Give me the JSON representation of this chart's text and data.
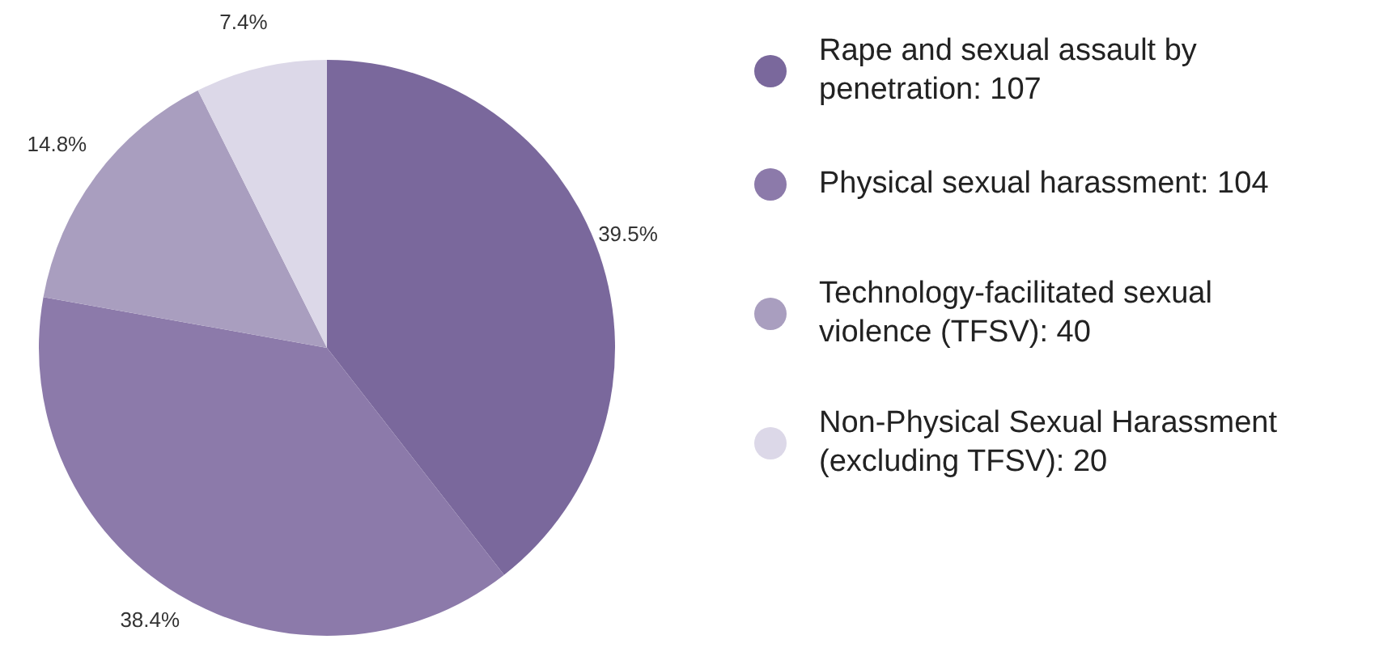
{
  "chart_data": {
    "type": "pie",
    "categories": [
      "Rape and sexual assault by penetration: 107",
      "Physical sexual harassment: 104",
      "Technology-facilitated sexual violence (TFSV): 40",
      "Non-Physical Sexual Harassment (excluding TFSV): 20"
    ],
    "values": [
      39.5,
      38.4,
      14.8,
      7.4
    ],
    "value_labels": [
      "39.5%",
      "38.4%",
      "14.8%",
      "7.4%"
    ],
    "colors": [
      "#7a689c",
      "#8c7aaa",
      "#a99ebf",
      "#dcd8e8"
    ],
    "legend": "right"
  }
}
